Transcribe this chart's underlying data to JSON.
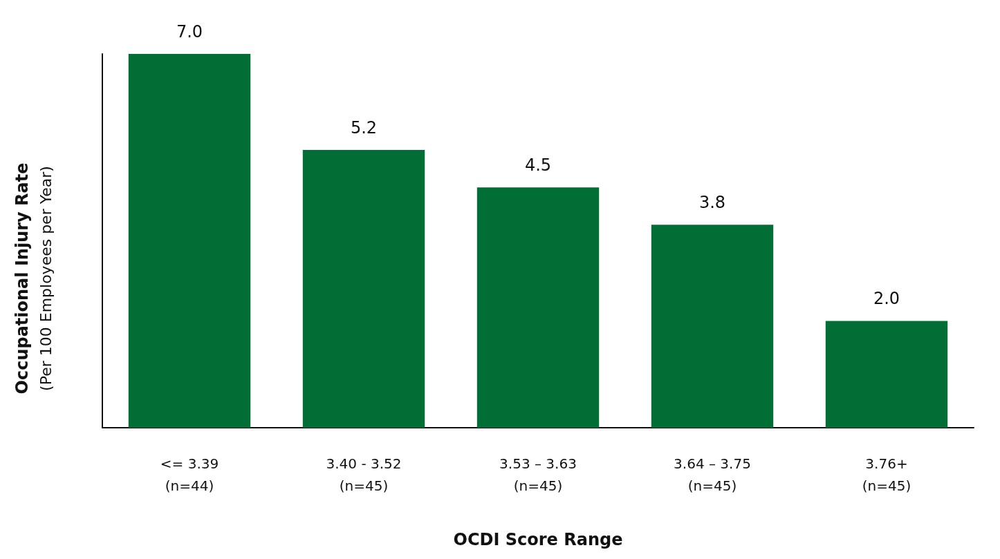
{
  "chart_data": {
    "type": "bar",
    "xlabel": "OCDI Score Range",
    "ylabel": "Occupational Injury Rate\n(Per 100 Employees per Year)",
    "categories": [
      "<= 3.39\n(n=44)",
      "3.40 - 3.52\n(n=45)",
      "3.53 – 3.63\n(n=45)",
      "3.64 – 3.75\n(n=45)",
      "3.76+\n(n=45)"
    ],
    "values": [
      7.0,
      5.2,
      4.5,
      3.8,
      2.0
    ],
    "value_labels": [
      "7.0",
      "5.2",
      "4.5",
      "3.8",
      "2.0"
    ],
    "color": "#016e35",
    "grid": false,
    "tick_labels": "x"
  }
}
